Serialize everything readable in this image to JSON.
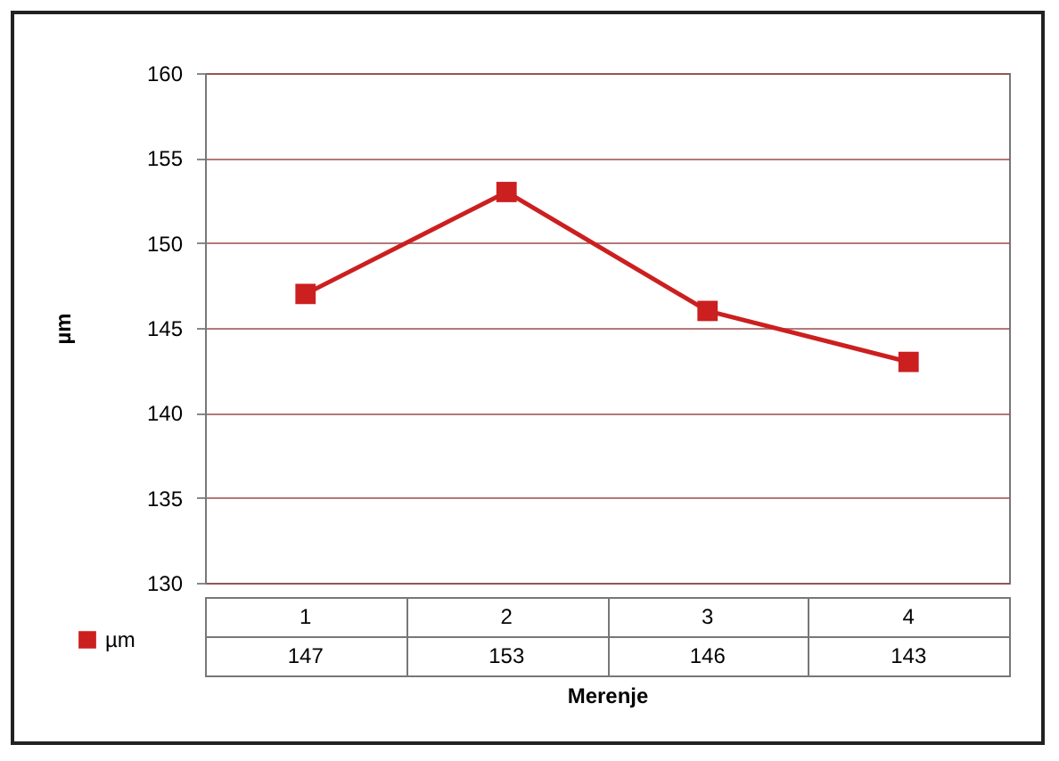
{
  "chart_data": {
    "type": "line",
    "xlabel": "Merenje",
    "ylabel": "µm",
    "categories": [
      "1",
      "2",
      "3",
      "4"
    ],
    "series": [
      {
        "name": "µm",
        "color": "#cc1f1f",
        "values": [
          147,
          153,
          146,
          143
        ]
      }
    ],
    "ylim": [
      130,
      160
    ],
    "yticks": [
      130,
      135,
      140,
      145,
      150,
      155,
      160
    ],
    "grid": "y",
    "marker": "square",
    "line_style": "solid",
    "data_labels": true,
    "legend": "bottom left"
  }
}
